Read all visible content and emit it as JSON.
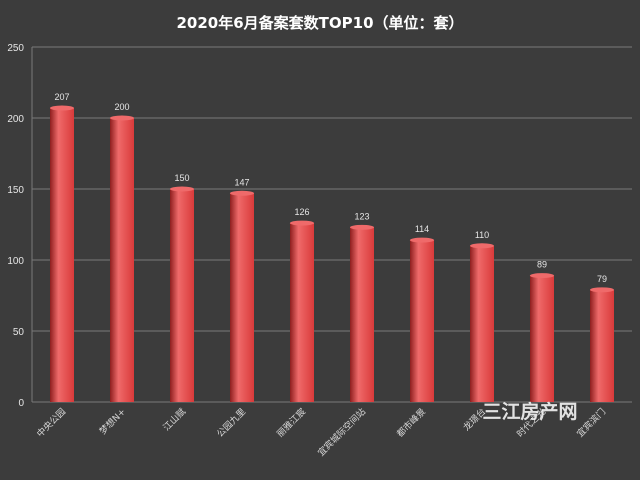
{
  "chart_data": {
    "type": "bar",
    "title": "2020年6月备案套数TOP10（单位：套）",
    "categories": [
      "中央公园",
      "梦想N+",
      "江山赋",
      "公园九里",
      "丽雅江宸",
      "宜宾城际空间站",
      "都市峰景",
      "龙璟台",
      "时代之光",
      "宜宾滨门"
    ],
    "values": [
      207,
      200,
      150,
      147,
      126,
      123,
      114,
      110,
      89,
      79
    ],
    "yticks": [
      0,
      50,
      100,
      150,
      200,
      250
    ],
    "ylim": [
      0,
      250
    ],
    "xlabel": "",
    "ylabel": "",
    "grid": true,
    "bar_color": "#d93a3a",
    "bar_highlight": "#ef6a6a",
    "bar_shadow": "#8e1e1e",
    "grid_color": "#7a7a7a",
    "background": "#3c3c3c"
  },
  "watermark": "三江房产网"
}
